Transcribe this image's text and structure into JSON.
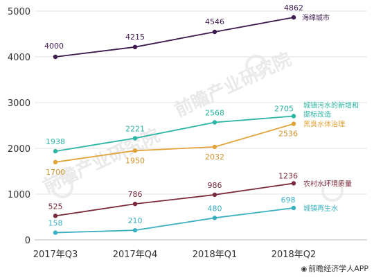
{
  "chart_data": {
    "type": "line",
    "categories": [
      "2017年Q3",
      "2017年Q4",
      "2018年Q1",
      "2018年Q2"
    ],
    "ylim": [
      0,
      5000
    ],
    "yticks": [
      0,
      1000,
      2000,
      3000,
      4000,
      5000
    ],
    "grid": "horizontal",
    "legend": "series names labeled at right end of each line",
    "series": [
      {
        "name": "海绵城市",
        "color": "#3d1a4d",
        "values": [
          4000,
          4215,
          4546,
          4862
        ]
      },
      {
        "name": "城镇污水的新增和\n提标改造",
        "color": "#2bb5a3",
        "values": [
          1938,
          2221,
          2568,
          2705
        ]
      },
      {
        "name": "黑臭水体治理",
        "color": "#e0a43a",
        "values": [
          1700,
          1950,
          2032,
          2536
        ]
      },
      {
        "name": "农村水环境质量",
        "color": "#7a2a3a",
        "values": [
          525,
          786,
          986,
          1236
        ]
      },
      {
        "name": "城镇再生水",
        "color": "#3aafc0",
        "values": [
          158,
          210,
          480,
          698
        ]
      }
    ]
  },
  "watermark": "前瞻产业研究院",
  "credit": {
    "icon": "weibo-icon",
    "text": "前瞻经济学人APP"
  }
}
